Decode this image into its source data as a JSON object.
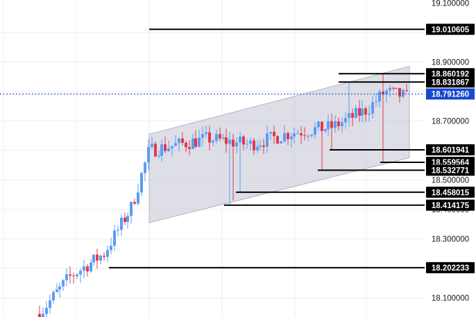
{
  "chart_data": {
    "type": "candlestick",
    "y_range": [
      18.035,
      19.11
    ],
    "y_tick_labels": [
      {
        "value": 19.1,
        "text": "19.100000"
      },
      {
        "value": 18.9,
        "text": "18.900000"
      },
      {
        "value": 18.7,
        "text": "18.700000"
      },
      {
        "value": 18.5,
        "text": "18.500000"
      },
      {
        "value": 18.4,
        "text": "18.400000"
      },
      {
        "value": 18.3,
        "text": "18.300000"
      },
      {
        "value": 18.1,
        "text": "18.100000"
      }
    ],
    "current_price": {
      "value": 18.79126,
      "label": "18.791260"
    },
    "level_tags": [
      {
        "value": 19.010605,
        "label": "19.010605"
      },
      {
        "value": 18.860192,
        "label": "18.860192"
      },
      {
        "value": 18.831867,
        "label": "18.831867"
      },
      {
        "value": 18.601941,
        "label": "18.601941"
      },
      {
        "value": 18.559564,
        "label": "18.559564"
      },
      {
        "value": 18.532771,
        "label": "18.532771"
      },
      {
        "value": 18.458015,
        "label": "18.458015"
      },
      {
        "value": 18.414175,
        "label": "18.414175"
      },
      {
        "value": 18.202233,
        "label": "18.202233"
      }
    ],
    "channel": {
      "upper_start": 18.655,
      "upper_end": 18.885,
      "lower_start": 18.355,
      "lower_end": 18.575
    },
    "grid": true,
    "colors": {
      "up": "#5b9cf6",
      "down": "#e0394a",
      "level_line": "#000000",
      "tag_bg": "#000000",
      "current_tag_bg": "#1848cc",
      "current_line": "#1848cc",
      "channel_fill": "#c9c9d6",
      "channel_stroke": "#b3b3c4",
      "grid": "#eceef5"
    }
  }
}
